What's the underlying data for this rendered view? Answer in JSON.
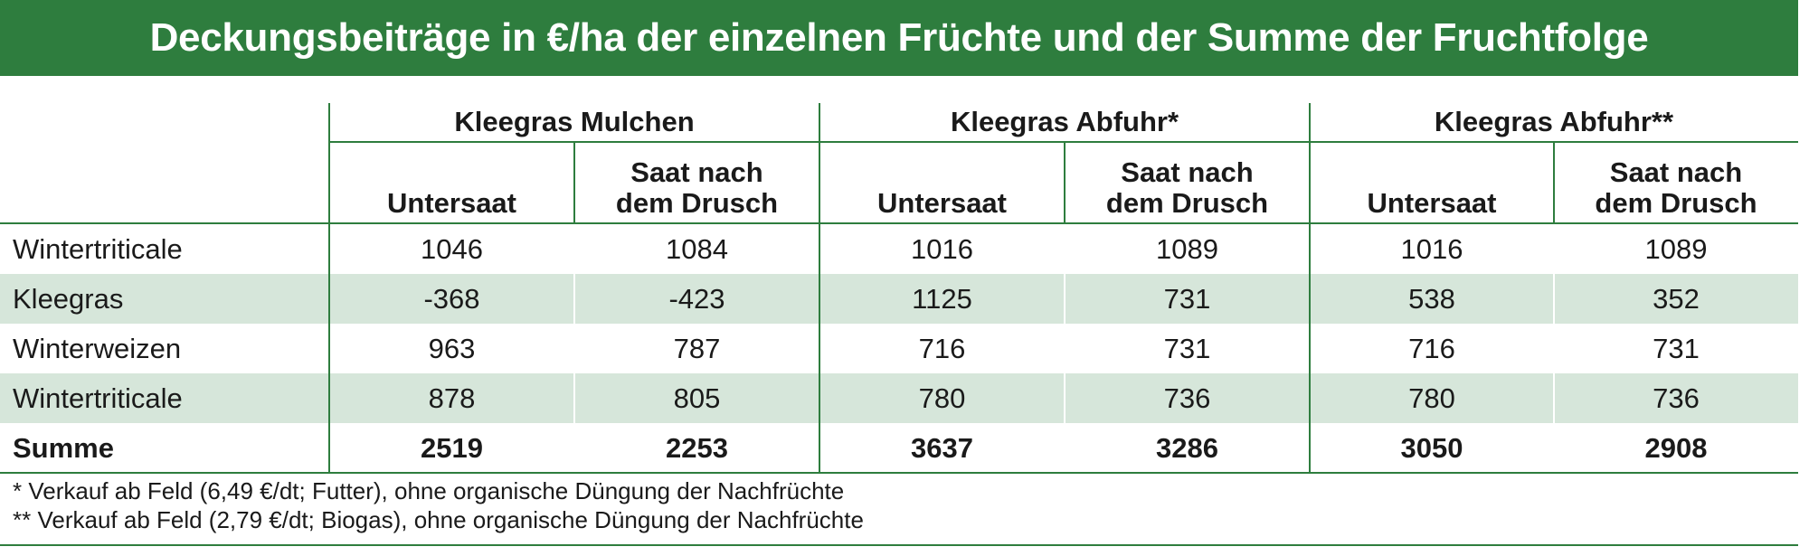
{
  "title": "Deckungsbeiträge in €/ha der einzelnen Früchte und der Summe der Fruchtfolge",
  "groups": [
    "Kleegras Mulchen",
    "Kleegras Abfuhr*",
    "Kleegras Abfuhr**"
  ],
  "subheaders": [
    "Untersaat",
    "Saat nach\ndem Drusch",
    "Untersaat",
    "Saat nach\ndem Drusch",
    "Untersaat",
    "Saat nach\ndem Drusch"
  ],
  "rows": [
    {
      "label": "Wintertriticale",
      "values": [
        "1046",
        "1084",
        "1016",
        "1089",
        "1016",
        "1089"
      ]
    },
    {
      "label": "Kleegras",
      "values": [
        "-368",
        "-423",
        "1125",
        "731",
        "538",
        "352"
      ]
    },
    {
      "label": "Winterweizen",
      "values": [
        "963",
        "787",
        "716",
        "731",
        "716",
        "731"
      ]
    },
    {
      "label": "Wintertriticale",
      "values": [
        "878",
        "805",
        "780",
        "736",
        "780",
        "736"
      ]
    },
    {
      "label": "Summe",
      "values": [
        "2519",
        "2253",
        "3637",
        "3286",
        "3050",
        "2908"
      ]
    }
  ],
  "footnotes": [
    "* Verkauf ab Feld (6,49 €/dt; Futter), ohne organische Düngung der Nachfrüchte",
    "** Verkauf ab Feld (2,79 €/dt; Biogas), ohne organische Düngung der Nachfrüchte"
  ],
  "colors": {
    "header_green": "#2e7d3e",
    "row_shade": "#d6e6da"
  }
}
